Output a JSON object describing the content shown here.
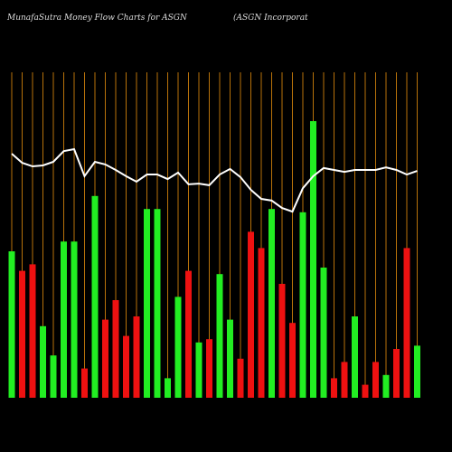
{
  "chart_data": {
    "type": "bar",
    "title": "MunafaSutra  Money Flow  Charts for ASGN",
    "subtitle": "(ASGN  Incorporat",
    "categories": [
      null,
      null,
      null,
      null,
      null,
      null,
      null,
      null,
      null,
      null,
      null,
      null,
      null,
      null,
      null,
      null,
      null,
      null,
      null,
      null,
      null,
      null,
      null,
      null,
      null,
      null,
      null,
      null,
      null,
      null,
      null,
      null,
      null,
      null,
      null,
      null,
      null,
      null,
      null,
      null
    ],
    "values": [
      45,
      39,
      41,
      22,
      13,
      48,
      48,
      9,
      62,
      24,
      30,
      19,
      25,
      58,
      58,
      6,
      31,
      39,
      17,
      18,
      38,
      24,
      12,
      51,
      46,
      58,
      35,
      23,
      57,
      85,
      40,
      6,
      11,
      25,
      4,
      11,
      7,
      15,
      46,
      16
    ],
    "colors": [
      "#22ee22",
      "#ee1111",
      "#ee1111",
      "#22ee22",
      "#22ee22",
      "#22ee22",
      "#22ee22",
      "#ee1111",
      "#22ee22",
      "#ee1111",
      "#ee1111",
      "#ee1111",
      "#ee1111",
      "#22ee22",
      "#22ee22",
      "#22ee22",
      "#22ee22",
      "#ee1111",
      "#22ee22",
      "#ee1111",
      "#22ee22",
      "#22ee22",
      "#ee1111",
      "#ee1111",
      "#ee1111",
      "#22ee22",
      "#ee1111",
      "#ee1111",
      "#22ee22",
      "#22ee22",
      "#22ee22",
      "#ee1111",
      "#ee1111",
      "#22ee22",
      "#ee1111",
      "#ee1111",
      "#22ee22",
      "#ee1111",
      "#ee1111",
      "#22ee22"
    ],
    "line_values": [
      75,
      72.2,
      71.1,
      71.4,
      72.5,
      75.8,
      76.4,
      68.1,
      72.5,
      71.7,
      70,
      68.1,
      66.4,
      68.6,
      68.6,
      67.2,
      69.2,
      65.6,
      65.8,
      65.3,
      68.6,
      70.3,
      67.8,
      63.9,
      61.1,
      60.6,
      58.3,
      57.2,
      64.4,
      68.1,
      70.6,
      70,
      69.4,
      70,
      70,
      70,
      70.8,
      70,
      68.6,
      69.7
    ],
    "line_color": "#ffffff",
    "grid_color": "#b8720a",
    "ylim": [
      0,
      100
    ]
  }
}
